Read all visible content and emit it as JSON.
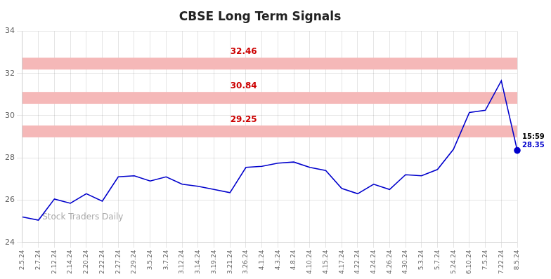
{
  "chart_data": {
    "type": "line",
    "title": "CBSE Long Term Signals",
    "categories": [
      "2.5.24",
      "2.7.24",
      "2.12.24",
      "2.14.24",
      "2.20.24",
      "2.22.24",
      "2.27.24",
      "2.29.24",
      "3.5.24",
      "3.7.24",
      "3.12.24",
      "3.14.24",
      "3.19.24",
      "3.21.24",
      "3.26.24",
      "4.1.24",
      "4.3.24",
      "4.8.24",
      "4.10.24",
      "4.15.24",
      "4.17.24",
      "4.22.24",
      "4.24.24",
      "4.26.24",
      "4.30.24",
      "5.3.24",
      "5.7.24",
      "5.24.24",
      "6.10.24",
      "7.5.24",
      "7.22.24",
      "8.5.24"
    ],
    "values": [
      25.2,
      25.05,
      26.05,
      25.85,
      26.3,
      25.95,
      27.1,
      27.15,
      26.9,
      27.1,
      26.75,
      26.65,
      26.5,
      26.35,
      27.55,
      27.6,
      27.75,
      27.8,
      27.55,
      27.4,
      26.55,
      26.3,
      26.75,
      26.5,
      27.2,
      27.15,
      27.45,
      28.4,
      30.15,
      30.25,
      31.65,
      28.35
    ],
    "color": "#0000cc",
    "ylim": [
      24,
      34
    ],
    "yticks": [
      24,
      26,
      28,
      30,
      32,
      34
    ],
    "grid": true,
    "hlines": [
      {
        "value": 32.46,
        "band": [
          32.18,
          32.74
        ],
        "color": "#cc0000",
        "band_color": "#f5b8b8"
      },
      {
        "value": 30.84,
        "band": [
          30.56,
          31.12
        ],
        "color": "#cc0000",
        "band_color": "#f5b8b8"
      },
      {
        "value": 29.25,
        "band": [
          28.97,
          29.53
        ],
        "color": "#cc0000",
        "band_color": "#f5b8b8"
      }
    ],
    "last_point": {
      "label": "15:59",
      "value": 28.35,
      "color": "#0000cc"
    },
    "watermark": "Stock Traders Daily"
  }
}
